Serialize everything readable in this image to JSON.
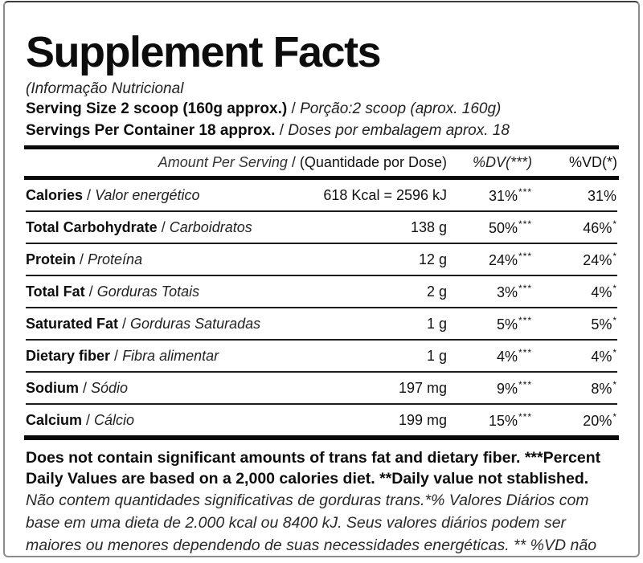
{
  "label": {
    "title": "Supplement Facts",
    "subtitle": "(Informação Nutricional",
    "serving_size": {
      "en": "Serving Size 2 scoop (160g approx.)",
      "sep": " / ",
      "pt": "Porção:2 scoop (aprox. 160g)"
    },
    "servings_per_container": {
      "en": "Servings Per Container 18 approx.",
      "sep": " / ",
      "pt": "Doses por embalagem aprox. 18"
    }
  },
  "table": {
    "header": {
      "amount_en": "Amount Per Serving",
      "amount_sep": " / ",
      "amount_pt": "(Quantidade por Dose)",
      "dv": "%DV(***)",
      "vd": "%VD(*)"
    },
    "rows": [
      {
        "name_en": "Calories",
        "sep": " / ",
        "name_pt": "Valor energético",
        "amount": "618 Kcal = 2596 kJ",
        "dv": "31%",
        "dv_sup": "***",
        "vd": "31%",
        "vd_sup": ""
      },
      {
        "name_en": "Total Carbohydrate",
        "sep": " / ",
        "name_pt": "Carboidratos",
        "amount": "138 g",
        "dv": "50%",
        "dv_sup": "***",
        "vd": "46%",
        "vd_sup": "*"
      },
      {
        "name_en": "Protein",
        "sep": " / ",
        "name_pt": "Proteína",
        "amount": "12 g",
        "dv": "24%",
        "dv_sup": "***",
        "vd": "24%",
        "vd_sup": "*"
      },
      {
        "name_en": "Total Fat",
        "sep": " / ",
        "name_pt": "Gorduras Totais",
        "amount": "2 g",
        "dv": "3%",
        "dv_sup": "***",
        "vd": "4%",
        "vd_sup": "*"
      },
      {
        "name_en": "Saturated Fat",
        "sep": " / ",
        "name_pt": "Gorduras Saturadas",
        "amount": "1 g",
        "dv": "5%",
        "dv_sup": "***",
        "vd": "5%",
        "vd_sup": "*"
      },
      {
        "name_en": "Dietary fiber",
        "sep": " / ",
        "name_pt": "Fibra alimentar",
        "amount": "1 g",
        "dv": "4%",
        "dv_sup": "***",
        "vd": "4%",
        "vd_sup": "*"
      },
      {
        "name_en": "Sodium",
        "sep": " / ",
        "name_pt": "Sódio",
        "amount": "197 mg",
        "dv": "9%",
        "dv_sup": "***",
        "vd": "8%",
        "vd_sup": "*"
      },
      {
        "name_en": "Calcium",
        "sep": " / ",
        "name_pt": "Cálcio",
        "amount": "199 mg",
        "dv": "15%",
        "dv_sup": "***",
        "vd": "20%",
        "vd_sup": "*"
      }
    ]
  },
  "footnotes": {
    "en_bold": "Does not contain significant amounts of trans fat and dietary fiber. ***Percent Daily Values are based on a 2,000 calories diet. **Daily value not stablished.",
    "pt_italic": "Não contem quantidades significativas de gorduras trans.*% Valores Diários com base em uma dieta de 2.000 kcal ou 8400 kJ. Seus valores diários podem ser maiores ou menores dependendo de suas necessidades energéticas. ** %VD não estabelecido."
  },
  "colors": {
    "text": "#111111",
    "rule": "#1c1c1c",
    "bar": "#0a0a0a",
    "border": "#8c8c8c",
    "background": "#ffffff"
  }
}
